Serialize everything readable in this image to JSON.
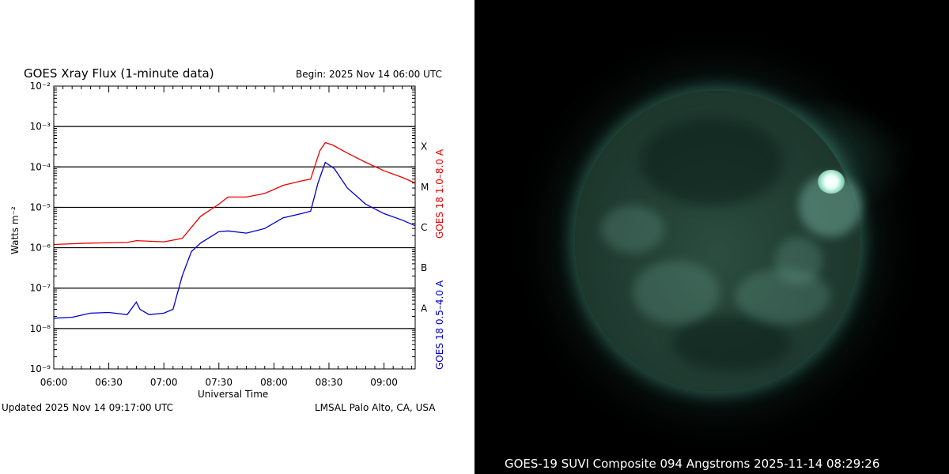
{
  "left": {
    "title": "GOES Xray Flux (1-minute data)",
    "begin": "Begin: 2025 Nov 14 06:00 UTC",
    "updated": "Updated 2025 Nov 14 09:17:00 UTC",
    "credit": "LMSAL Palo Alto, CA, USA"
  },
  "right": {
    "caption": "GOES-19 SUVI Composite 094 Angstroms 2025-11-14 08:29:26"
  },
  "colors": {
    "long_channel": "#ee0000",
    "short_channel": "#0000cc",
    "sun_tint": "#2c4d40"
  },
  "chart_data": {
    "type": "line",
    "title": "GOES Xray Flux (1-minute data)",
    "xlabel": "Universal Time",
    "ylabel": "Watts m⁻²",
    "yscale": "log",
    "ylim": [
      1e-09,
      0.01
    ],
    "xlim": [
      "06:00",
      "09:17"
    ],
    "x_ticks": [
      "06:00",
      "06:30",
      "07:00",
      "07:30",
      "08:00",
      "08:30",
      "09:00"
    ],
    "y_ticks": [
      "10⁻⁹",
      "10⁻⁸",
      "10⁻⁷",
      "10⁻⁶",
      "10⁻⁵",
      "10⁻⁴",
      "10⁻³",
      "10⁻²"
    ],
    "flare_classes": [
      "A",
      "B",
      "C",
      "M",
      "X"
    ],
    "grid": "horizontal lines at decades 1e-8 to 1e-3",
    "series": [
      {
        "name": "GOES 18 1.0–8.0 A",
        "color": "#ee0000",
        "x": [
          "06:00",
          "06:20",
          "06:40",
          "06:45",
          "07:00",
          "07:10",
          "07:20",
          "07:30",
          "07:35",
          "07:45",
          "07:55",
          "08:05",
          "08:15",
          "08:20",
          "08:25",
          "08:28",
          "08:32",
          "08:40",
          "08:50",
          "09:00",
          "09:10",
          "09:17"
        ],
        "y": [
          1.2e-06,
          1.3e-06,
          1.35e-06,
          1.5e-06,
          1.4e-06,
          1.7e-06,
          6e-06,
          1.2e-05,
          1.8e-05,
          1.8e-05,
          2.2e-05,
          3.5e-05,
          4.5e-05,
          5e-05,
          0.00025,
          0.0004,
          0.00035,
          0.00022,
          0.00013,
          8e-05,
          5.5e-05,
          4e-05
        ]
      },
      {
        "name": "GOES 18 0.5–4.0 A",
        "color": "#0000cc",
        "x": [
          "06:00",
          "06:10",
          "06:20",
          "06:30",
          "06:40",
          "06:45",
          "06:47",
          "06:52",
          "07:00",
          "07:05",
          "07:10",
          "07:15",
          "07:20",
          "07:30",
          "07:35",
          "07:45",
          "07:55",
          "08:05",
          "08:15",
          "08:20",
          "08:24",
          "08:28",
          "08:33",
          "08:40",
          "08:50",
          "09:00",
          "09:10",
          "09:17"
        ],
        "y": [
          1.8e-08,
          1.9e-08,
          2.4e-08,
          2.5e-08,
          2.2e-08,
          4.5e-08,
          3e-08,
          2.2e-08,
          2.4e-08,
          3e-08,
          2e-07,
          8e-07,
          1.3e-06,
          2.5e-06,
          2.6e-06,
          2.3e-06,
          3e-06,
          5.5e-06,
          7e-06,
          8e-06,
          4e-05,
          0.00013,
          9e-05,
          3e-05,
          1.2e-05,
          7e-06,
          4.8e-06,
          3.5e-06
        ]
      }
    ]
  }
}
